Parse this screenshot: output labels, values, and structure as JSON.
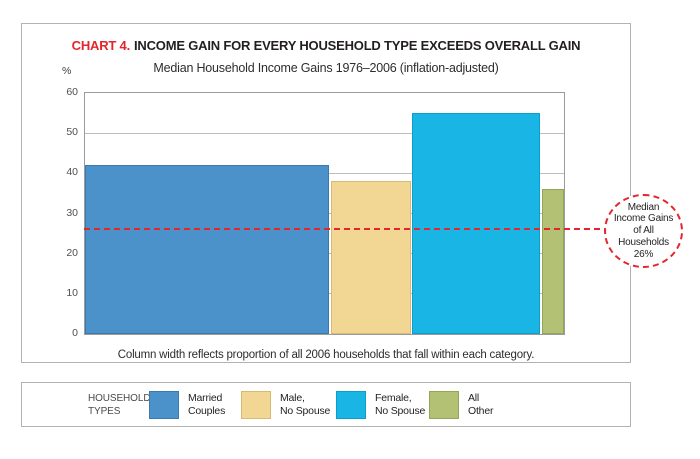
{
  "colors": {
    "accent_red": "#e4252b",
    "bar_fills": [
      "#4b92cb",
      "#f1d694",
      "#18b5e5",
      "#b2c173"
    ],
    "bar_borders": [
      "#3a79ad",
      "#d9ba74",
      "#0d9fcc",
      "#93a556"
    ]
  },
  "header": {
    "chart_label": "CHART 4.",
    "title": "INCOME GAIN FOR EVERY HOUSEHOLD TYPE EXCEEDS OVERALL GAIN",
    "subtitle": "Median Household Income Gains 1976–2006 (inflation-adjusted)"
  },
  "chart_data": {
    "type": "bar",
    "variable_width": true,
    "title": "CHART 4. INCOME GAIN FOR EVERY HOUSEHOLD TYPE EXCEEDS OVERALL GAIN",
    "subtitle": "Median Household Income Gains 1976–2006 (inflation-adjusted)",
    "ylabel": "%",
    "ylim": [
      0,
      60
    ],
    "yticks": [
      0,
      10,
      20,
      30,
      40,
      50,
      60
    ],
    "grid": true,
    "categories": [
      "Married Couples",
      "Male, No Spouse",
      "Female, No Spouse",
      "All Other"
    ],
    "values": [
      42,
      38,
      55,
      36
    ],
    "width_shares_pct": [
      51,
      17,
      27,
      5
    ],
    "colors": [
      "#4b92cb",
      "#f1d694",
      "#18b5e5",
      "#b2c173"
    ],
    "border_colors": [
      "#3a79ad",
      "#d9ba74",
      "#0d9fcc",
      "#93a556"
    ],
    "reference_line": {
      "value": 26,
      "color": "#e4252b",
      "style": "dashed",
      "label": "Median Income Gains of All Households 26%"
    }
  },
  "axis": {
    "unit_label": "%"
  },
  "callout": {
    "line1": "Median",
    "line2": "Income Gains",
    "line3": "of All",
    "line4": "Households",
    "line5": "26%"
  },
  "footnote": "Column width reflects proportion of all 2006 households that fall within each category.",
  "legend": {
    "label_line1": "HOUSEHOLD",
    "label_line2": "TYPES",
    "items": [
      {
        "label_line1": "Married",
        "label_line2": "Couples",
        "color": "#4b92cb"
      },
      {
        "label_line1": "Male,",
        "label_line2": "No Spouse",
        "color": "#f1d694"
      },
      {
        "label_line1": "Female,",
        "label_line2": "No Spouse",
        "color": "#18b5e5"
      },
      {
        "label_line1": "All",
        "label_line2": "Other",
        "color": "#b2c173"
      }
    ]
  }
}
